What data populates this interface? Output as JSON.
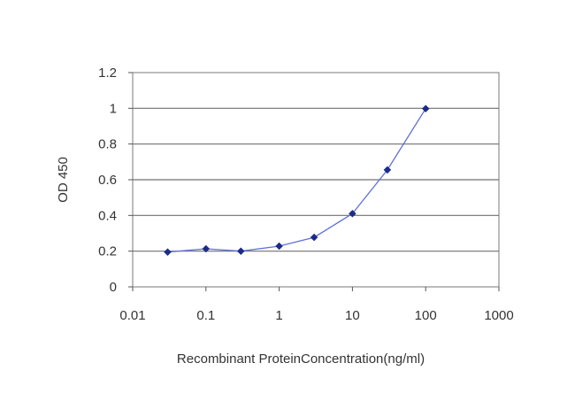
{
  "chart_data": {
    "type": "line",
    "xscale": "log",
    "xlabel": "Recombinant ProteinConcentration(ng/ml)",
    "ylabel": "OD 450",
    "xlim": [
      0.01,
      1000
    ],
    "ylim": [
      0,
      1.2
    ],
    "xticks": [
      "0.01",
      "0.1",
      "1",
      "10",
      "100",
      "1000"
    ],
    "yticks": [
      "0",
      "0.2",
      "0.4",
      "0.6",
      "0.8",
      "1",
      "1.2"
    ],
    "grid": "horizontal",
    "series": [
      {
        "x": [
          0.03,
          0.1,
          0.3,
          1,
          3,
          10,
          30,
          100
        ],
        "y": [
          0.195,
          0.213,
          0.2,
          0.228,
          0.277,
          0.41,
          0.655,
          0.998
        ]
      }
    ],
    "colors": {
      "line": "#6070d8",
      "marker": "#1c2a8a",
      "grid": "#707070",
      "plot_bg": "#ffffff"
    }
  }
}
